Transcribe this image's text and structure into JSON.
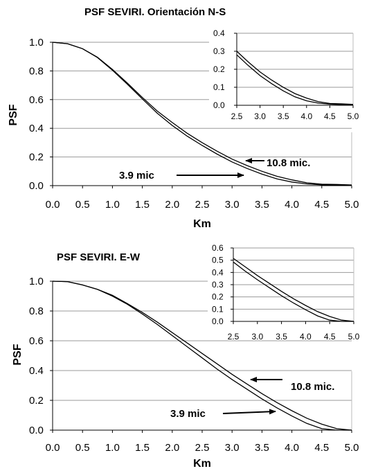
{
  "chart_data": [
    {
      "type": "line",
      "title": "PSF SEVIRI. Orientación N-S",
      "xlabel": "Km",
      "ylabel": "PSF",
      "xlim": [
        0,
        5
      ],
      "ylim": [
        0,
        1
      ],
      "x_ticks": [
        "0.0",
        "0.5",
        "1.0",
        "1.5",
        "2.0",
        "2.5",
        "3.0",
        "3.5",
        "4.0",
        "4.5",
        "5.0"
      ],
      "y_ticks": [
        "0.0",
        "0.2",
        "0.4",
        "0.6",
        "0.8",
        "1.0"
      ],
      "grid": "horizontal",
      "series": [
        {
          "name": "10.8 mic.",
          "x": [
            0,
            0.25,
            0.5,
            0.75,
            1.0,
            1.25,
            1.5,
            1.75,
            2.0,
            2.25,
            2.5,
            2.75,
            3.0,
            3.25,
            3.5,
            3.75,
            4.0,
            4.25,
            4.5,
            4.75,
            5.0
          ],
          "values": [
            1.0,
            0.99,
            0.955,
            0.895,
            0.81,
            0.715,
            0.615,
            0.52,
            0.44,
            0.365,
            0.3,
            0.24,
            0.185,
            0.14,
            0.1,
            0.065,
            0.04,
            0.02,
            0.01,
            0.008,
            0.005
          ]
        },
        {
          "name": "3.9 mic",
          "x": [
            0,
            0.25,
            0.5,
            0.75,
            1.0,
            1.25,
            1.5,
            1.75,
            2.0,
            2.25,
            2.5,
            2.75,
            3.0,
            3.25,
            3.5,
            3.75,
            4.0,
            4.25,
            4.5,
            4.75,
            5.0
          ],
          "values": [
            1.0,
            0.99,
            0.955,
            0.893,
            0.805,
            0.707,
            0.605,
            0.505,
            0.42,
            0.345,
            0.28,
            0.22,
            0.165,
            0.12,
            0.08,
            0.047,
            0.025,
            0.012,
            0.006,
            0.004,
            0.003
          ]
        }
      ],
      "annotations": [
        "10.8 mic.",
        "3.9 mic"
      ],
      "inset": {
        "xlim": [
          2.5,
          5.0
        ],
        "ylim": [
          0,
          0.4
        ],
        "x_ticks": [
          "2.5",
          "3.0",
          "3.5",
          "4.0",
          "4.5",
          "5.0"
        ],
        "y_ticks": [
          "0.0",
          "0.1",
          "0.2",
          "0.3",
          "0.4"
        ]
      }
    },
    {
      "type": "line",
      "title": "PSF SEVIRI.  E-W",
      "xlabel": "Km",
      "ylabel": "PSF",
      "xlim": [
        0,
        5
      ],
      "ylim": [
        0,
        1
      ],
      "x_ticks": [
        "0.0",
        "0.5",
        "1.0",
        "1.5",
        "2.0",
        "2.5",
        "3.0",
        "3.5",
        "4.0",
        "4.5",
        "5.0"
      ],
      "y_ticks": [
        "0.0",
        "0.2",
        "0.4",
        "0.6",
        "0.8",
        "1.0"
      ],
      "grid": "horizontal",
      "series": [
        {
          "name": "10.8 mic.",
          "x": [
            0,
            0.25,
            0.5,
            0.75,
            1.0,
            1.25,
            1.5,
            1.75,
            2.0,
            2.25,
            2.5,
            2.75,
            3.0,
            3.25,
            3.5,
            3.75,
            4.0,
            4.25,
            4.5,
            4.75,
            5.0
          ],
          "values": [
            1.0,
            0.997,
            0.975,
            0.945,
            0.905,
            0.85,
            0.79,
            0.725,
            0.655,
            0.585,
            0.515,
            0.445,
            0.375,
            0.31,
            0.245,
            0.185,
            0.13,
            0.08,
            0.04,
            0.01,
            0.0
          ]
        },
        {
          "name": "3.9 mic",
          "x": [
            0,
            0.25,
            0.5,
            0.75,
            1.0,
            1.25,
            1.5,
            1.75,
            2.0,
            2.25,
            2.5,
            2.75,
            3.0,
            3.25,
            3.5,
            3.75,
            4.0,
            4.25,
            4.5,
            4.75,
            5.0
          ],
          "values": [
            1.0,
            0.997,
            0.975,
            0.945,
            0.9,
            0.845,
            0.78,
            0.71,
            0.635,
            0.56,
            0.485,
            0.41,
            0.34,
            0.275,
            0.21,
            0.15,
            0.095,
            0.045,
            0.01,
            0.0,
            0.0
          ]
        }
      ],
      "annotations": [
        "10.8 mic.",
        "3.9 mic"
      ],
      "inset": {
        "xlim": [
          2.5,
          5.0
        ],
        "ylim": [
          0,
          0.6
        ],
        "x_ticks": [
          "2.5",
          "3.0",
          "3.5",
          "4.0",
          "4.5",
          "5.0"
        ],
        "y_ticks": [
          "0.0",
          "0.1",
          "0.2",
          "0.3",
          "0.4",
          "0.5",
          "0.6"
        ]
      }
    }
  ]
}
